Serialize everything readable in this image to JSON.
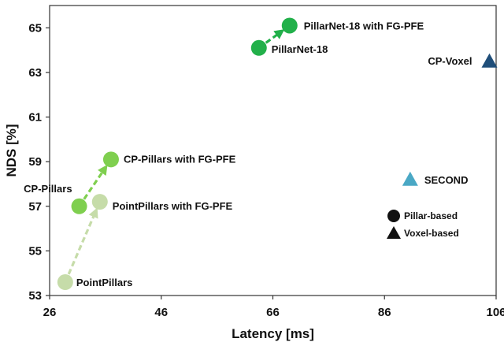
{
  "chart_data": {
    "type": "scatter",
    "xlabel": "Latency [ms]",
    "ylabel": "NDS [%]",
    "xlim": [
      26,
      106
    ],
    "ylim": [
      53,
      66
    ],
    "x_ticks": [
      "26",
      "46",
      "66",
      "86",
      "106"
    ],
    "y_ticks": [
      "53",
      "55",
      "57",
      "59",
      "61",
      "63",
      "65"
    ],
    "grid": false,
    "colors": {
      "pointpillars": "#c6dca9",
      "cp_pillars": "#7fcf4f",
      "pillarnet": "#22b04a",
      "cp_voxel": "#1f4e79",
      "second": "#4aa8c5",
      "legend_marker": "#111111"
    },
    "points": [
      {
        "id": "pointpillars",
        "label": "PointPillars",
        "x": 28.8,
        "y": 53.6,
        "marker": "circle",
        "color_key": "pointpillars"
      },
      {
        "id": "pointpillars-fgpfe",
        "label": "PointPillars with FG-PFE",
        "x": 35.0,
        "y": 57.2,
        "marker": "circle",
        "color_key": "pointpillars"
      },
      {
        "id": "cp-pillars",
        "label": "CP-Pillars",
        "x": 31.3,
        "y": 57.0,
        "marker": "circle",
        "color_key": "cp_pillars"
      },
      {
        "id": "cp-pillars-fgpfe",
        "label": "CP-Pillars with FG-PFE",
        "x": 37.0,
        "y": 59.1,
        "marker": "circle",
        "color_key": "cp_pillars"
      },
      {
        "id": "pillarnet-18",
        "label": "PillarNet-18",
        "x": 63.5,
        "y": 64.1,
        "marker": "circle",
        "color_key": "pillarnet"
      },
      {
        "id": "pillarnet-18-fgpfe",
        "label": "PillarNet-18 with FG-PFE",
        "x": 69.0,
        "y": 65.1,
        "marker": "circle",
        "color_key": "pillarnet"
      },
      {
        "id": "cp-voxel",
        "label": "CP-Voxel",
        "x": 104.8,
        "y": 63.5,
        "marker": "triangle",
        "color_key": "cp_voxel"
      },
      {
        "id": "second",
        "label": "SECOND",
        "x": 90.6,
        "y": 58.2,
        "marker": "triangle",
        "color_key": "second"
      }
    ],
    "arrows": [
      {
        "from": "pointpillars",
        "to": "pointpillars-fgpfe",
        "color_key": "pointpillars"
      },
      {
        "from": "cp-pillars",
        "to": "cp-pillars-fgpfe",
        "color_key": "cp_pillars"
      },
      {
        "from": "pillarnet-18",
        "to": "pillarnet-18-fgpfe",
        "color_key": "pillarnet"
      }
    ],
    "legend": {
      "position": "bottom-right",
      "entries": [
        {
          "marker": "circle",
          "label": "Pillar-based"
        },
        {
          "marker": "triangle",
          "label": "Voxel-based"
        }
      ]
    }
  }
}
